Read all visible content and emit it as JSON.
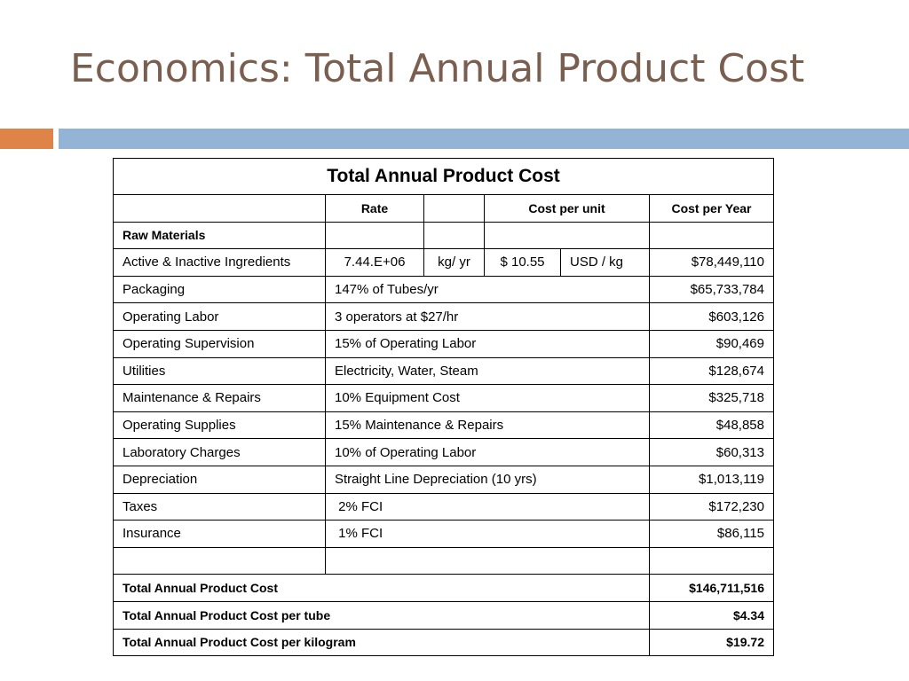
{
  "slide": {
    "title": "Economics: Total Annual Product Cost",
    "colors": {
      "title": "#7a5f50",
      "accent_orange": "#df8448",
      "accent_blue": "#93b4d4"
    }
  },
  "table": {
    "caption": "Total Annual Product Cost",
    "headers": {
      "rate": "Rate",
      "cost_per_unit": "Cost per unit",
      "cost_per_year": "Cost per Year"
    },
    "section_label": "Raw Materials",
    "ingredients": {
      "label": "Active & Inactive Ingredients",
      "rate_value": "7.44.E+06",
      "rate_unit": "kg/ yr",
      "unit_cost": "$ 10.55",
      "unit_cost_unit": "USD / kg",
      "cost": "$78,449,110"
    },
    "rows": [
      {
        "label": "Packaging",
        "basis": "147% of Tubes/yr",
        "cost": "$65,733,784"
      },
      {
        "label": "Operating Labor",
        "basis": "3 operators at $27/hr",
        "cost": "$603,126"
      },
      {
        "label": "Operating Supervision",
        "basis": "15% of Operating Labor",
        "cost": "$90,469"
      },
      {
        "label": "Utilities",
        "basis": "Electricity, Water, Steam",
        "cost": "$128,674"
      },
      {
        "label": "Maintenance & Repairs",
        "basis": "10% Equipment Cost",
        "cost": "$325,718"
      },
      {
        "label": "Operating Supplies",
        "basis": "15% Maintenance & Repairs",
        "cost": "$48,858"
      },
      {
        "label": "Laboratory Charges",
        "basis": "10% of Operating Labor",
        "cost": "$60,313"
      },
      {
        "label": "Depreciation",
        "basis": "Straight Line Depreciation (10 yrs)",
        "cost": "$1,013,119"
      },
      {
        "label": "Taxes",
        "basis": " 2% FCI",
        "cost": "$172,230"
      },
      {
        "label": "Insurance",
        "basis": " 1% FCI",
        "cost": "$86,115"
      }
    ],
    "totals": [
      {
        "label": "Total Annual Product Cost",
        "value": "$146,711,516"
      },
      {
        "label": "Total Annual Product Cost per tube",
        "value": "$4.34"
      },
      {
        "label": "Total Annual Product Cost per kilogram",
        "value": "$19.72"
      }
    ]
  }
}
